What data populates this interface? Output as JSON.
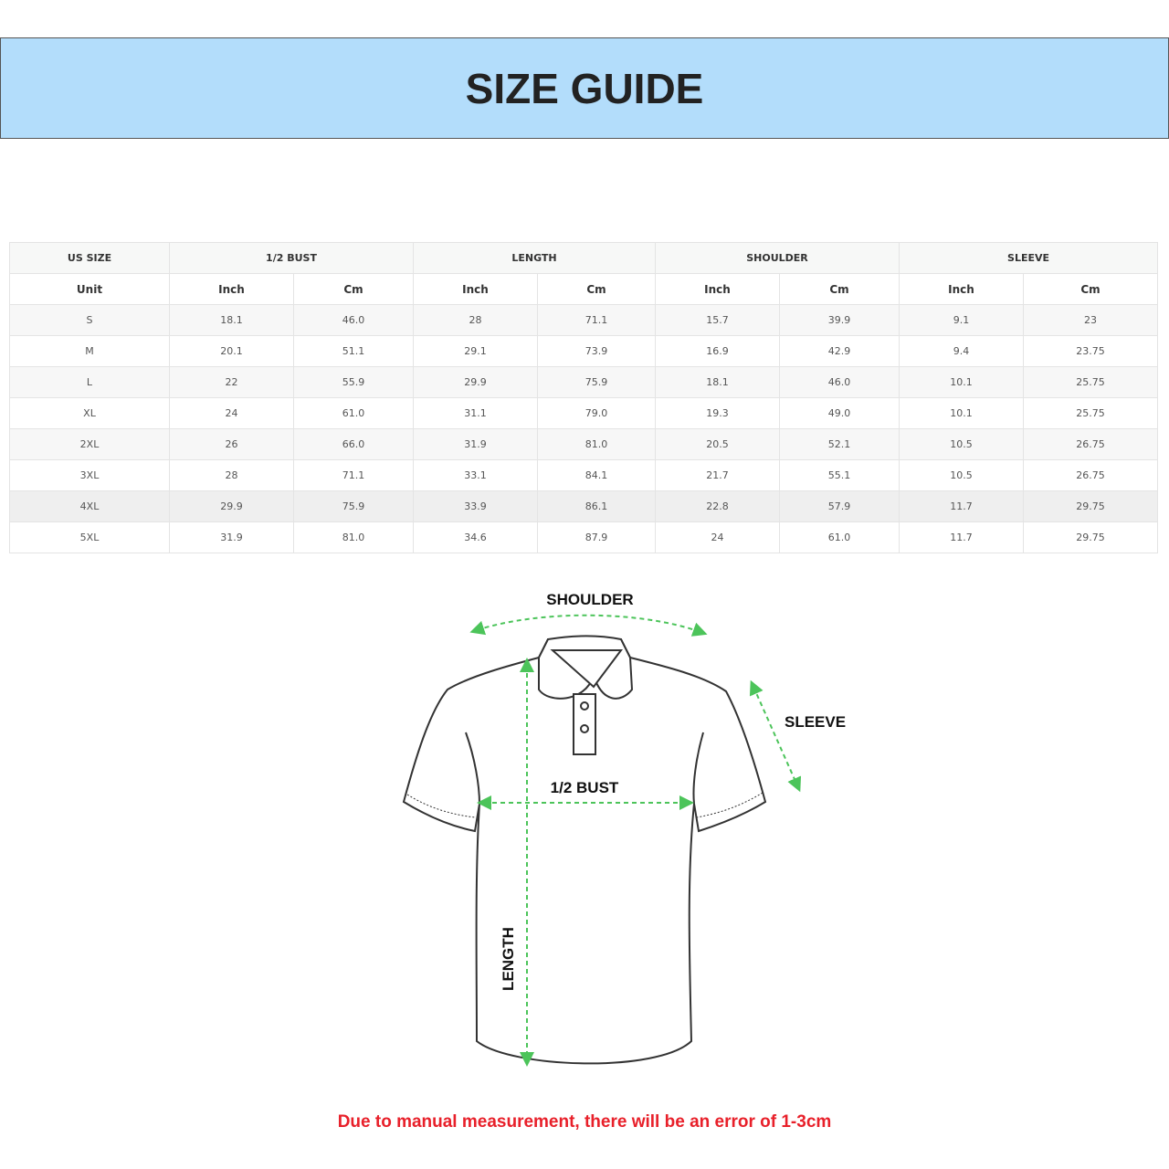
{
  "header": {
    "title": "SIZE GUIDE",
    "background": "#b3ddfb"
  },
  "table": {
    "group_headers": [
      "US SIZE",
      "1/2 BUST",
      "LENGTH",
      "SHOULDER",
      "SLEEVE"
    ],
    "unit_row": [
      "Unit",
      "Inch",
      "Cm",
      "Inch",
      "Cm",
      "Inch",
      "Cm",
      "Inch",
      "Cm"
    ],
    "rows": [
      [
        "S",
        "18.1",
        "46.0",
        "28",
        "71.1",
        "15.7",
        "39.9",
        "9.1",
        "23"
      ],
      [
        "M",
        "20.1",
        "51.1",
        "29.1",
        "73.9",
        "16.9",
        "42.9",
        "9.4",
        "23.75"
      ],
      [
        "L",
        "22",
        "55.9",
        "29.9",
        "75.9",
        "18.1",
        "46.0",
        "10.1",
        "25.75"
      ],
      [
        "XL",
        "24",
        "61.0",
        "31.1",
        "79.0",
        "19.3",
        "49.0",
        "10.1",
        "25.75"
      ],
      [
        "2XL",
        "26",
        "66.0",
        "31.9",
        "81.0",
        "20.5",
        "52.1",
        "10.5",
        "26.75"
      ],
      [
        "3XL",
        "28",
        "71.1",
        "33.1",
        "84.1",
        "21.7",
        "55.1",
        "10.5",
        "26.75"
      ],
      [
        "4XL",
        "29.9",
        "75.9",
        "33.9",
        "86.1",
        "22.8",
        "57.9",
        "11.7",
        "29.75"
      ],
      [
        "5XL",
        "31.9",
        "81.0",
        "34.6",
        "87.9",
        "24",
        "61.0",
        "11.7",
        "29.75"
      ]
    ]
  },
  "diagram": {
    "shoulder_label": "SHOULDER",
    "sleeve_label": "SLEEVE",
    "bust_label": "1/2 BUST",
    "length_label": "LENGTH",
    "arrow_color": "#4cc45a"
  },
  "footer_note": {
    "text": "Due to manual measurement, there will be an error of 1-3cm",
    "color": "#e8202a"
  }
}
